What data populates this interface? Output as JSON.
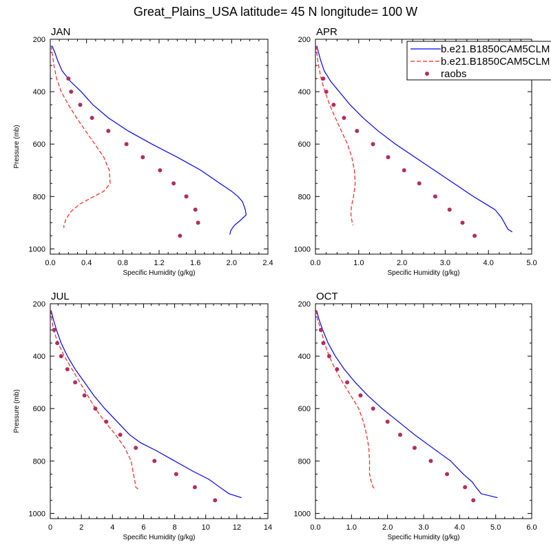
{
  "figure_title": "Great_Plains_USA  latitude= 45 N longitude= 100 W",
  "legend": [
    {
      "label": "b.e21.B1850CAM5CLM",
      "style": "solid",
      "color": "#0000ff"
    },
    {
      "label": "b.e21.B1850CAM5CLM",
      "style": "dashed",
      "color": "#ff2020"
    },
    {
      "label": "raobs",
      "style": "marker",
      "color": "#b22e5e"
    }
  ],
  "chart_data": [
    {
      "type": "line",
      "panel_title": "JAN",
      "xlabel": "Specific Humidity (g/kg)",
      "ylabel": "Pressure (mb)",
      "xlim": [
        0,
        2.4
      ],
      "xticks": [
        0,
        0.4,
        0.8,
        1.2,
        1.6,
        2.0,
        2.4
      ],
      "xtick_labels": [
        "0.0",
        "0.4",
        "0.8",
        "1.2",
        "1.6",
        "2.0",
        "2.4"
      ],
      "ylim": [
        1020,
        200
      ],
      "yticks": [
        200,
        400,
        600,
        800,
        1000
      ],
      "series": [
        {
          "name": "b.e21.B1850CAM5CLM",
          "style": "solid",
          "color": "#0000ff",
          "points": [
            [
              0.02,
              225
            ],
            [
              0.05,
              250
            ],
            [
              0.08,
              280
            ],
            [
              0.13,
              320
            ],
            [
              0.22,
              360
            ],
            [
              0.34,
              400
            ],
            [
              0.47,
              450
            ],
            [
              0.64,
              500
            ],
            [
              0.86,
              550
            ],
            [
              1.12,
              600
            ],
            [
              1.4,
              650
            ],
            [
              1.66,
              700
            ],
            [
              1.87,
              750
            ],
            [
              2.0,
              780
            ],
            [
              2.07,
              800
            ],
            [
              2.12,
              820
            ],
            [
              2.15,
              850
            ],
            [
              2.16,
              870
            ],
            [
              2.1,
              890
            ],
            [
              2.03,
              910
            ],
            [
              1.99,
              930
            ],
            [
              1.98,
              945
            ]
          ]
        },
        {
          "name": "b.e21.B1850CAM5CLM",
          "style": "dashed",
          "color": "#ff2020",
          "points": [
            [
              0.01,
              225
            ],
            [
              0.02,
              250
            ],
            [
              0.04,
              300
            ],
            [
              0.07,
              350
            ],
            [
              0.12,
              400
            ],
            [
              0.2,
              450
            ],
            [
              0.29,
              500
            ],
            [
              0.39,
              550
            ],
            [
              0.49,
              600
            ],
            [
              0.59,
              650
            ],
            [
              0.65,
              700
            ],
            [
              0.66,
              750
            ],
            [
              0.59,
              780
            ],
            [
              0.48,
              800
            ],
            [
              0.32,
              830
            ],
            [
              0.22,
              860
            ],
            [
              0.17,
              890
            ],
            [
              0.15,
              910
            ],
            [
              0.15,
              920
            ]
          ]
        }
      ],
      "markers": {
        "name": "raobs",
        "color": "#b22e5e",
        "points": [
          [
            0.2,
            350
          ],
          [
            0.23,
            400
          ],
          [
            0.33,
            450
          ],
          [
            0.46,
            500
          ],
          [
            0.64,
            550
          ],
          [
            0.84,
            600
          ],
          [
            1.02,
            650
          ],
          [
            1.21,
            700
          ],
          [
            1.36,
            750
          ],
          [
            1.5,
            800
          ],
          [
            1.6,
            850
          ],
          [
            1.63,
            900
          ],
          [
            1.43,
            950
          ]
        ]
      }
    },
    {
      "type": "line",
      "panel_title": "APR",
      "xlabel": "Specific Humidity (g/kg)",
      "ylabel": "",
      "xlim": [
        0,
        5.0
      ],
      "xticks": [
        0,
        1,
        2,
        3,
        4,
        5
      ],
      "xtick_labels": [
        "0.0",
        "1.0",
        "2.0",
        "3.0",
        "4.0",
        "5.0"
      ],
      "ylim": [
        1020,
        200
      ],
      "yticks": [
        200,
        400,
        600,
        800,
        1000
      ],
      "series": [
        {
          "name": "b.e21.B1850CAM5CLM",
          "style": "solid",
          "color": "#0000ff",
          "points": [
            [
              0.03,
              225
            ],
            [
              0.07,
              250
            ],
            [
              0.12,
              280
            ],
            [
              0.2,
              320
            ],
            [
              0.35,
              360
            ],
            [
              0.55,
              400
            ],
            [
              0.8,
              450
            ],
            [
              1.1,
              500
            ],
            [
              1.45,
              550
            ],
            [
              1.85,
              600
            ],
            [
              2.3,
              650
            ],
            [
              2.75,
              700
            ],
            [
              3.2,
              750
            ],
            [
              3.65,
              800
            ],
            [
              3.95,
              830
            ],
            [
              4.15,
              850
            ],
            [
              4.3,
              880
            ],
            [
              4.4,
              910
            ],
            [
              4.45,
              925
            ],
            [
              4.55,
              935
            ]
          ]
        },
        {
          "name": "b.e21.B1850CAM5CLM",
          "style": "dashed",
          "color": "#ff2020",
          "points": [
            [
              0.01,
              225
            ],
            [
              0.03,
              250
            ],
            [
              0.07,
              300
            ],
            [
              0.13,
              350
            ],
            [
              0.22,
              400
            ],
            [
              0.33,
              450
            ],
            [
              0.46,
              500
            ],
            [
              0.6,
              550
            ],
            [
              0.74,
              600
            ],
            [
              0.84,
              650
            ],
            [
              0.9,
              700
            ],
            [
              0.92,
              750
            ],
            [
              0.88,
              800
            ],
            [
              0.83,
              840
            ],
            [
              0.82,
              870
            ],
            [
              0.85,
              900
            ],
            [
              0.87,
              910
            ]
          ]
        }
      ],
      "markers": {
        "name": "raobs",
        "color": "#b22e5e",
        "points": [
          [
            0.18,
            350
          ],
          [
            0.25,
            400
          ],
          [
            0.42,
            450
          ],
          [
            0.66,
            500
          ],
          [
            0.96,
            550
          ],
          [
            1.33,
            600
          ],
          [
            1.68,
            650
          ],
          [
            2.05,
            700
          ],
          [
            2.4,
            750
          ],
          [
            2.77,
            800
          ],
          [
            3.1,
            850
          ],
          [
            3.4,
            900
          ],
          [
            3.68,
            950
          ]
        ]
      }
    },
    {
      "type": "line",
      "panel_title": "JUL",
      "xlabel": "Specific Humidity (g/kg)",
      "ylabel": "Pressure (mb)",
      "xlim": [
        0,
        14
      ],
      "xticks": [
        0,
        2,
        4,
        6,
        8,
        10,
        12,
        14
      ],
      "xtick_labels": [
        "0",
        "2",
        "4",
        "6",
        "8",
        "10",
        "12",
        "14"
      ],
      "ylim": [
        1020,
        200
      ],
      "yticks": [
        200,
        400,
        600,
        800,
        1000
      ],
      "series": [
        {
          "name": "b.e21.B1850CAM5CLM",
          "style": "solid",
          "color": "#0000ff",
          "points": [
            [
              0.05,
              225
            ],
            [
              0.2,
              260
            ],
            [
              0.4,
              300
            ],
            [
              0.7,
              350
            ],
            [
              1.1,
              400
            ],
            [
              1.6,
              450
            ],
            [
              2.2,
              500
            ],
            [
              2.8,
              550
            ],
            [
              3.5,
              600
            ],
            [
              4.3,
              650
            ],
            [
              5.1,
              700
            ],
            [
              5.8,
              730
            ],
            [
              6.8,
              760
            ],
            [
              8.0,
              800
            ],
            [
              9.2,
              840
            ],
            [
              10.2,
              870
            ],
            [
              10.9,
              900
            ],
            [
              11.5,
              925
            ],
            [
              12.3,
              940
            ]
          ]
        },
        {
          "name": "b.e21.B1850CAM5CLM",
          "style": "dashed",
          "color": "#ff2020",
          "points": [
            [
              0.03,
              225
            ],
            [
              0.1,
              260
            ],
            [
              0.2,
              300
            ],
            [
              0.5,
              350
            ],
            [
              0.9,
              400
            ],
            [
              1.4,
              450
            ],
            [
              1.9,
              500
            ],
            [
              2.4,
              550
            ],
            [
              2.9,
              600
            ],
            [
              3.5,
              650
            ],
            [
              4.2,
              700
            ],
            [
              4.8,
              750
            ],
            [
              5.2,
              800
            ],
            [
              5.35,
              850
            ],
            [
              5.45,
              880
            ],
            [
              5.5,
              900
            ],
            [
              5.7,
              910
            ]
          ]
        }
      ],
      "markers": {
        "name": "raobs",
        "color": "#b22e5e",
        "points": [
          [
            0.25,
            300
          ],
          [
            0.45,
            350
          ],
          [
            0.7,
            400
          ],
          [
            1.1,
            450
          ],
          [
            1.6,
            500
          ],
          [
            2.2,
            550
          ],
          [
            2.9,
            600
          ],
          [
            3.6,
            650
          ],
          [
            4.5,
            700
          ],
          [
            5.5,
            750
          ],
          [
            6.7,
            800
          ],
          [
            8.1,
            850
          ],
          [
            9.3,
            900
          ],
          [
            10.6,
            950
          ]
        ]
      }
    },
    {
      "type": "line",
      "panel_title": "OCT",
      "xlabel": "Specific Humidity (g/kg)",
      "ylabel": "",
      "xlim": [
        0,
        6.0
      ],
      "xticks": [
        0,
        1,
        2,
        3,
        4,
        5,
        6
      ],
      "xtick_labels": [
        "0.0",
        "1.0",
        "2.0",
        "3.0",
        "4.0",
        "5.0",
        "6.0"
      ],
      "ylim": [
        1020,
        200
      ],
      "yticks": [
        200,
        400,
        600,
        800,
        1000
      ],
      "series": [
        {
          "name": "b.e21.B1850CAM5CLM",
          "style": "solid",
          "color": "#0000ff",
          "points": [
            [
              0.03,
              225
            ],
            [
              0.1,
              260
            ],
            [
              0.2,
              300
            ],
            [
              0.35,
              350
            ],
            [
              0.55,
              400
            ],
            [
              0.8,
              450
            ],
            [
              1.1,
              500
            ],
            [
              1.45,
              550
            ],
            [
              1.85,
              600
            ],
            [
              2.3,
              650
            ],
            [
              2.75,
              700
            ],
            [
              3.25,
              750
            ],
            [
              3.75,
              800
            ],
            [
              4.1,
              850
            ],
            [
              4.35,
              880
            ],
            [
              4.45,
              900
            ],
            [
              4.6,
              925
            ],
            [
              5.05,
              940
            ]
          ]
        },
        {
          "name": "b.e21.B1850CAM5CLM",
          "style": "dashed",
          "color": "#ff2020",
          "points": [
            [
              0.02,
              225
            ],
            [
              0.06,
              260
            ],
            [
              0.15,
              300
            ],
            [
              0.25,
              350
            ],
            [
              0.38,
              400
            ],
            [
              0.55,
              450
            ],
            [
              0.75,
              500
            ],
            [
              0.98,
              550
            ],
            [
              1.2,
              600
            ],
            [
              1.33,
              650
            ],
            [
              1.42,
              700
            ],
            [
              1.48,
              750
            ],
            [
              1.5,
              800
            ],
            [
              1.5,
              850
            ],
            [
              1.55,
              880
            ],
            [
              1.6,
              900
            ],
            [
              1.68,
              910
            ]
          ]
        }
      ],
      "markers": {
        "name": "raobs",
        "color": "#b22e5e",
        "points": [
          [
            0.15,
            300
          ],
          [
            0.22,
            350
          ],
          [
            0.38,
            400
          ],
          [
            0.6,
            450
          ],
          [
            0.88,
            500
          ],
          [
            1.25,
            550
          ],
          [
            1.6,
            600
          ],
          [
            2.0,
            650
          ],
          [
            2.35,
            700
          ],
          [
            2.75,
            750
          ],
          [
            3.2,
            800
          ],
          [
            3.65,
            850
          ],
          [
            4.15,
            900
          ],
          [
            4.38,
            950
          ]
        ]
      }
    }
  ]
}
